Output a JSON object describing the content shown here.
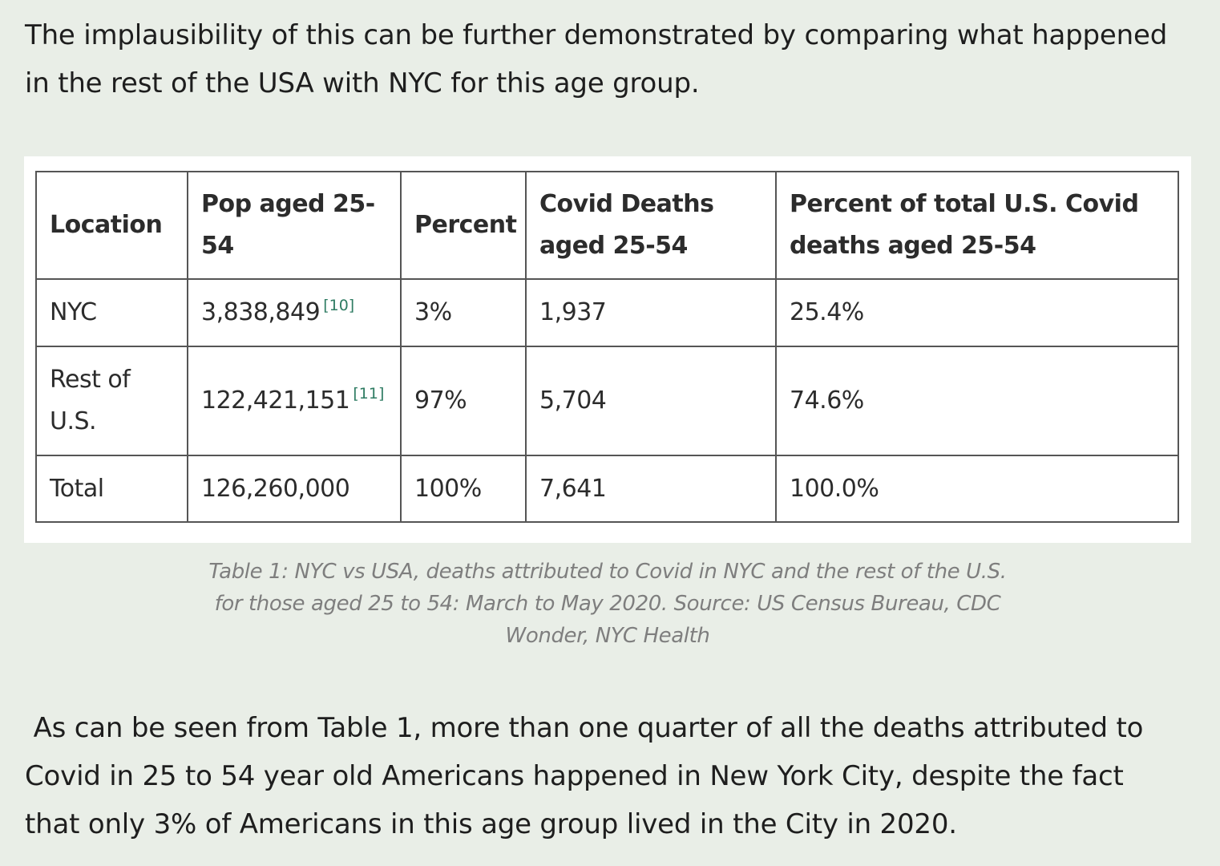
{
  "intro": {
    "line1": "The implausibility of this can be further demonstrated by comparing what happened",
    "line2": "in the rest of the USA with NYC for this age group."
  },
  "table": {
    "headers": [
      "Location",
      "Pop aged 25-54",
      "Percent",
      "Covid Deaths aged 25-54",
      "Percent of total U.S. Covid deaths aged 25-54"
    ],
    "rows": [
      {
        "location": "NYC",
        "pop": "3,838,849",
        "pop_ref": "[10]",
        "percent": "3%",
        "deaths": "1,937",
        "share": "25.4%"
      },
      {
        "location": "Rest of U.S.",
        "pop": "122,421,151",
        "pop_ref": "[11]",
        "percent": "97%",
        "deaths": "5,704",
        "share": "74.6%"
      },
      {
        "location": "Total",
        "pop": "126,260,000",
        "pop_ref": "",
        "percent": "100%",
        "deaths": "7,641",
        "share": "100.0%"
      }
    ]
  },
  "caption": {
    "line1": "Table 1: NYC vs USA, deaths attributed to Covid in NYC and the rest of the U.S.",
    "line2": "for those aged 25 to 54: March to May 2020. Source: US Census Bureau, CDC",
    "line3": "Wonder, NYC Health"
  },
  "conclusion": {
    "line1": " As can be seen from Table 1, more than one quarter of all the deaths attributed to",
    "line2": "Covid in 25 to 54 year old Americans happened in New York City, despite the fact",
    "line3": "that only 3% of Americans in this age group lived in the City in 2020."
  }
}
